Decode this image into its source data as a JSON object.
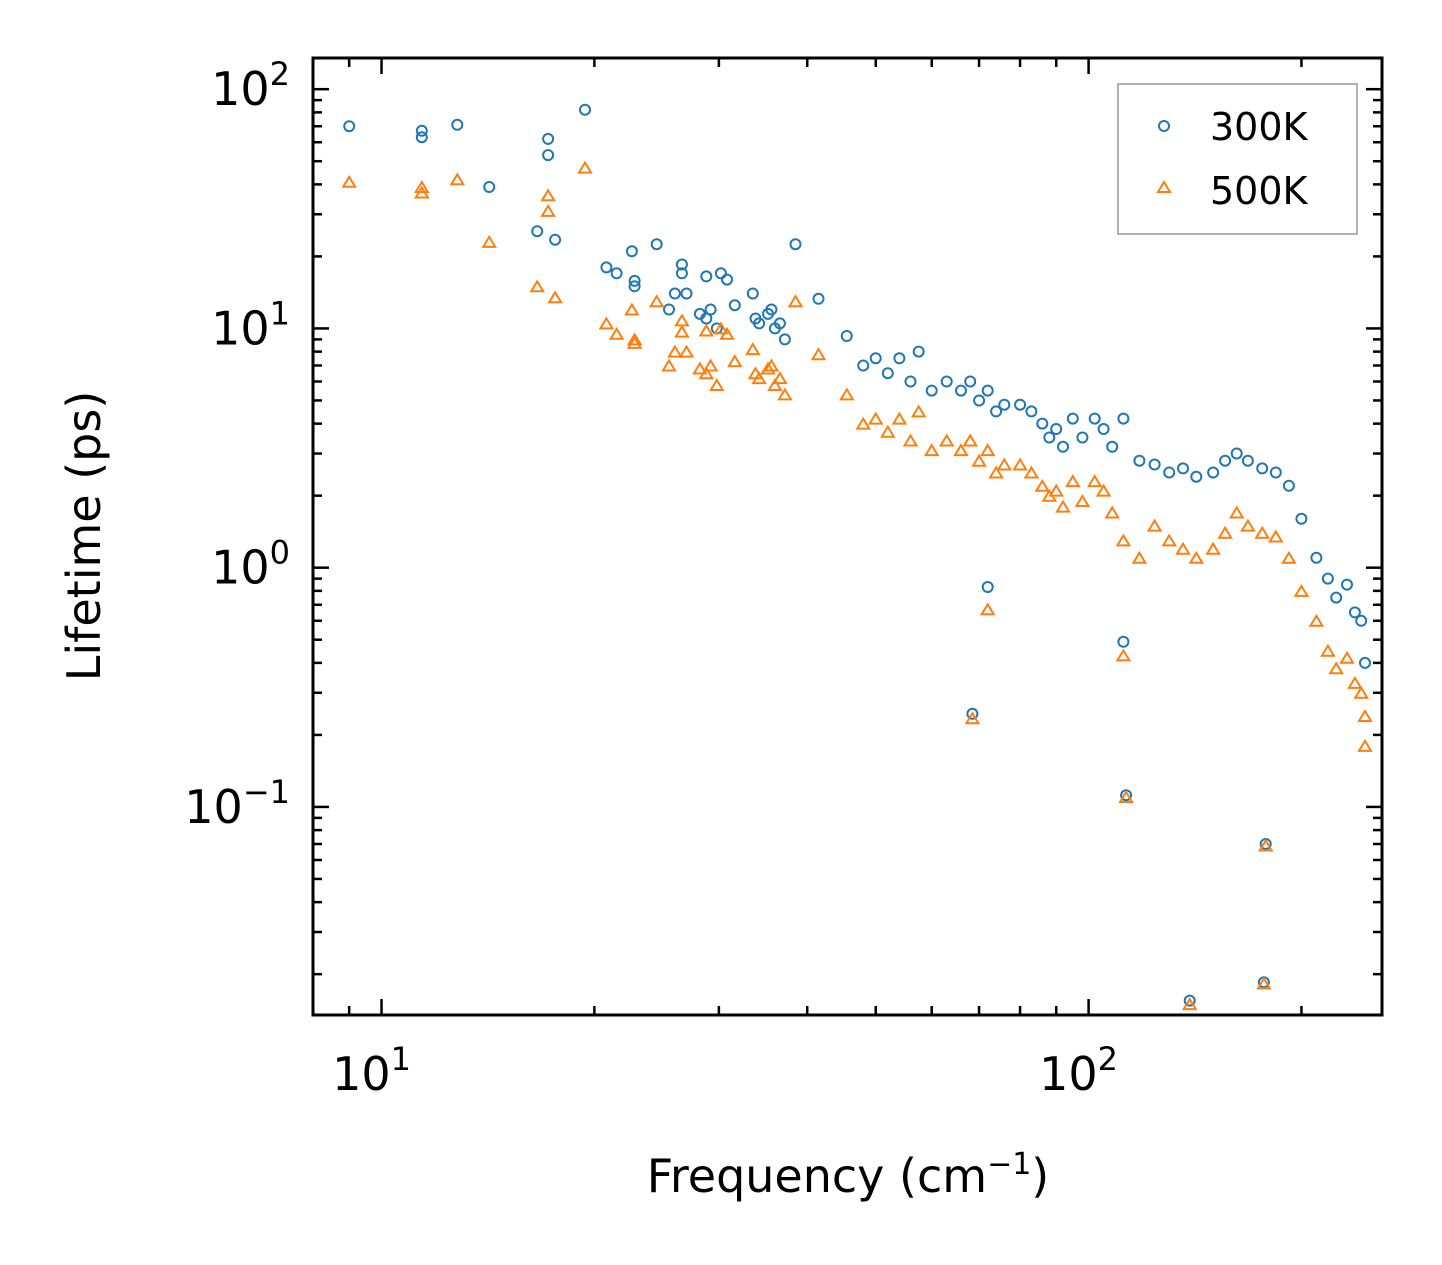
{
  "chart_data": {
    "type": "scatter",
    "xscale": "log",
    "yscale": "log",
    "xlim": [
      8,
      260
    ],
    "ylim": [
      0.0135,
      135
    ],
    "xlabel": "Frequency (cm",
    "xlabel_sup": "−1",
    "xlabel_close": ")",
    "ylabel": "Lifetime (ps)",
    "xticks": [
      {
        "value": 10,
        "base": "10",
        "exp": "1"
      },
      {
        "value": 100,
        "base": "10",
        "exp": "2"
      }
    ],
    "yticks": [
      {
        "value": 0.1,
        "base": "10",
        "exp": "−1"
      },
      {
        "value": 1,
        "base": "10",
        "exp": "0"
      },
      {
        "value": 10,
        "base": "10",
        "exp": "1"
      },
      {
        "value": 100,
        "base": "10",
        "exp": "2"
      }
    ],
    "legend_position": "top-right",
    "grid": false,
    "series": [
      {
        "name": "300K",
        "marker": "circle",
        "color": "#1f77b4",
        "points": [
          [
            9.0,
            70
          ],
          [
            11.4,
            67
          ],
          [
            11.4,
            63
          ],
          [
            12.8,
            71
          ],
          [
            14.2,
            39
          ],
          [
            16.6,
            25.5
          ],
          [
            17.2,
            62
          ],
          [
            17.2,
            53
          ],
          [
            17.6,
            23.5
          ],
          [
            19.4,
            82
          ],
          [
            20.8,
            18
          ],
          [
            21.5,
            17
          ],
          [
            22.6,
            21
          ],
          [
            22.8,
            15.8
          ],
          [
            22.8,
            15
          ],
          [
            24.5,
            22.5
          ],
          [
            25.5,
            12
          ],
          [
            26,
            14
          ],
          [
            26.6,
            18.5
          ],
          [
            26.6,
            17
          ],
          [
            27,
            14
          ],
          [
            28.2,
            11.5
          ],
          [
            28.8,
            16.5
          ],
          [
            28.8,
            11
          ],
          [
            29.2,
            12
          ],
          [
            29.8,
            10
          ],
          [
            30.2,
            17
          ],
          [
            30.8,
            16
          ],
          [
            31.6,
            12.5
          ],
          [
            33.5,
            14
          ],
          [
            33.8,
            11
          ],
          [
            34.2,
            10.5
          ],
          [
            35.2,
            11.5
          ],
          [
            35.6,
            12
          ],
          [
            36,
            10
          ],
          [
            36.6,
            10.5
          ],
          [
            37.2,
            9
          ],
          [
            38.5,
            22.5
          ],
          [
            41.5,
            13.3
          ],
          [
            45.5,
            9.3
          ],
          [
            48,
            7
          ],
          [
            50,
            7.5
          ],
          [
            52,
            6.5
          ],
          [
            54,
            7.5
          ],
          [
            56,
            6
          ],
          [
            57.5,
            8
          ],
          [
            60,
            5.5
          ],
          [
            63,
            6
          ],
          [
            66,
            5.5
          ],
          [
            68,
            6
          ],
          [
            70,
            5
          ],
          [
            72,
            5.5
          ],
          [
            74,
            4.5
          ],
          [
            76,
            4.8
          ],
          [
            80,
            4.8
          ],
          [
            83,
            4.5
          ],
          [
            86,
            4
          ],
          [
            88,
            3.5
          ],
          [
            90,
            3.8
          ],
          [
            92,
            3.2
          ],
          [
            95,
            4.2
          ],
          [
            98,
            3.5
          ],
          [
            102,
            4.2
          ],
          [
            105,
            3.8
          ],
          [
            108,
            3.2
          ],
          [
            112,
            4.2
          ],
          [
            118,
            2.8
          ],
          [
            124,
            2.7
          ],
          [
            130,
            2.5
          ],
          [
            136,
            2.6
          ],
          [
            142,
            2.4
          ],
          [
            150,
            2.5
          ],
          [
            156,
            2.8
          ],
          [
            162,
            3.0
          ],
          [
            168,
            2.8
          ],
          [
            176,
            2.6
          ],
          [
            184,
            2.5
          ],
          [
            192,
            2.2
          ],
          [
            200,
            1.6
          ],
          [
            210,
            1.1
          ],
          [
            218,
            0.9
          ],
          [
            224,
            0.75
          ],
          [
            232,
            0.85
          ],
          [
            238,
            0.65
          ],
          [
            243,
            0.6
          ],
          [
            246,
            0.4
          ],
          [
            72,
            0.83
          ],
          [
            68.5,
            0.245
          ],
          [
            112,
            0.49
          ],
          [
            113,
            0.112
          ],
          [
            178,
            0.07
          ],
          [
            177,
            0.0185
          ],
          [
            139,
            0.0155
          ]
        ]
      },
      {
        "name": "500K",
        "marker": "triangle",
        "color": "#ff7f0e",
        "points": [
          [
            9.0,
            41
          ],
          [
            11.4,
            39
          ],
          [
            11.4,
            37
          ],
          [
            12.8,
            42
          ],
          [
            14.2,
            23
          ],
          [
            16.6,
            15
          ],
          [
            17.2,
            36
          ],
          [
            17.2,
            31
          ],
          [
            17.6,
            13.5
          ],
          [
            19.4,
            47
          ],
          [
            20.8,
            10.5
          ],
          [
            21.5,
            9.5
          ],
          [
            22.6,
            12
          ],
          [
            22.8,
            9
          ],
          [
            22.8,
            8.7
          ],
          [
            24.5,
            13
          ],
          [
            25.5,
            7
          ],
          [
            26,
            8
          ],
          [
            26.6,
            10.8
          ],
          [
            26.6,
            9.7
          ],
          [
            27,
            8
          ],
          [
            28.2,
            6.8
          ],
          [
            28.8,
            9.8
          ],
          [
            28.8,
            6.5
          ],
          [
            29.2,
            7
          ],
          [
            29.8,
            5.8
          ],
          [
            30.2,
            10
          ],
          [
            30.8,
            9.5
          ],
          [
            31.6,
            7.3
          ],
          [
            33.5,
            8.2
          ],
          [
            33.8,
            6.5
          ],
          [
            34.2,
            6.2
          ],
          [
            35.2,
            6.8
          ],
          [
            35.6,
            7
          ],
          [
            36,
            5.8
          ],
          [
            36.6,
            6.2
          ],
          [
            37.2,
            5.3
          ],
          [
            38.5,
            13
          ],
          [
            41.5,
            7.8
          ],
          [
            45.5,
            5.3
          ],
          [
            48,
            4
          ],
          [
            50,
            4.2
          ],
          [
            52,
            3.7
          ],
          [
            54,
            4.2
          ],
          [
            56,
            3.4
          ],
          [
            57.5,
            4.5
          ],
          [
            60,
            3.1
          ],
          [
            63,
            3.4
          ],
          [
            66,
            3.1
          ],
          [
            68,
            3.4
          ],
          [
            70,
            2.8
          ],
          [
            72,
            3.1
          ],
          [
            74,
            2.5
          ],
          [
            76,
            2.7
          ],
          [
            80,
            2.7
          ],
          [
            83,
            2.5
          ],
          [
            86,
            2.2
          ],
          [
            88,
            2.0
          ],
          [
            90,
            2.1
          ],
          [
            92,
            1.8
          ],
          [
            95,
            2.3
          ],
          [
            98,
            1.9
          ],
          [
            102,
            2.3
          ],
          [
            105,
            2.1
          ],
          [
            108,
            1.7
          ],
          [
            112,
            1.3
          ],
          [
            118,
            1.1
          ],
          [
            124,
            1.5
          ],
          [
            130,
            1.3
          ],
          [
            136,
            1.2
          ],
          [
            142,
            1.1
          ],
          [
            150,
            1.2
          ],
          [
            156,
            1.4
          ],
          [
            162,
            1.7
          ],
          [
            168,
            1.5
          ],
          [
            176,
            1.4
          ],
          [
            184,
            1.35
          ],
          [
            192,
            1.1
          ],
          [
            200,
            0.8
          ],
          [
            210,
            0.6
          ],
          [
            218,
            0.45
          ],
          [
            224,
            0.38
          ],
          [
            232,
            0.42
          ],
          [
            238,
            0.33
          ],
          [
            243,
            0.3
          ],
          [
            246,
            0.24
          ],
          [
            246,
            0.18
          ],
          [
            72,
            0.67
          ],
          [
            68.5,
            0.235
          ],
          [
            112,
            0.43
          ],
          [
            113,
            0.11
          ],
          [
            178,
            0.069
          ],
          [
            177,
            0.0183
          ],
          [
            139,
            0.015
          ]
        ]
      }
    ]
  }
}
